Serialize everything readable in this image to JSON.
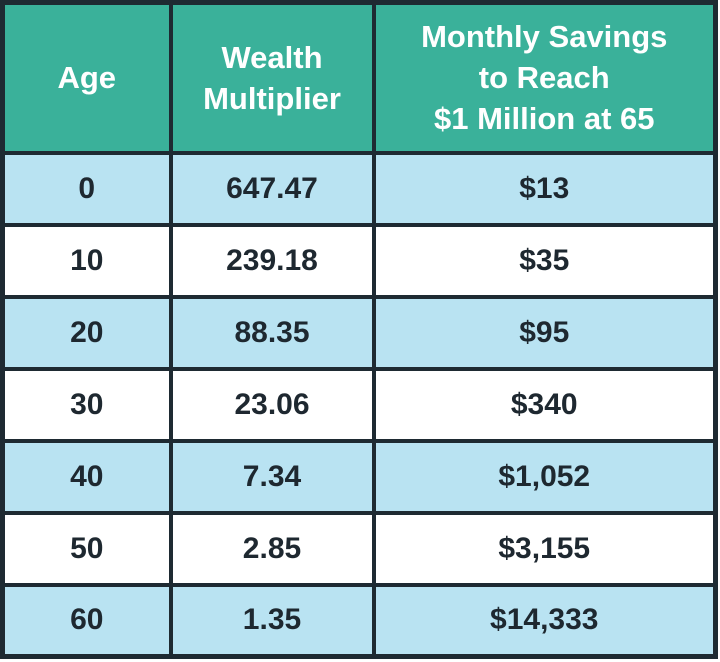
{
  "colors": {
    "header_bg": "#3ab19a",
    "row_alt_bg": "#b9e3f2",
    "row_bg": "#ffffff",
    "border": "#1e2a32",
    "header_text": "#ffffff",
    "cell_text": "#1e2830",
    "page_bg": "#ffffff"
  },
  "table": {
    "header": {
      "age_lines": [
        "Age"
      ],
      "multiplier_lines": [
        "Wealth",
        "Multiplier"
      ],
      "savings_lines": [
        "Monthly Savings",
        "to Reach",
        "$1 Million at 65"
      ]
    }
  },
  "chart_data": {
    "type": "table",
    "title": "",
    "columns": [
      "Age",
      "Wealth Multiplier",
      "Monthly Savings to Reach $1 Million at 65"
    ],
    "rows": [
      [
        "0",
        "647.47",
        "$13"
      ],
      [
        "10",
        "239.18",
        "$35"
      ],
      [
        "20",
        "88.35",
        "$95"
      ],
      [
        "30",
        "23.06",
        "$340"
      ],
      [
        "40",
        "7.34",
        "$1,052"
      ],
      [
        "50",
        "2.85",
        "$3,155"
      ],
      [
        "60",
        "1.35",
        "$14,333"
      ]
    ],
    "layout": {
      "header_fill": "#3ab19a",
      "zebra_fill": "#b9e3f2",
      "grid": "on"
    }
  }
}
